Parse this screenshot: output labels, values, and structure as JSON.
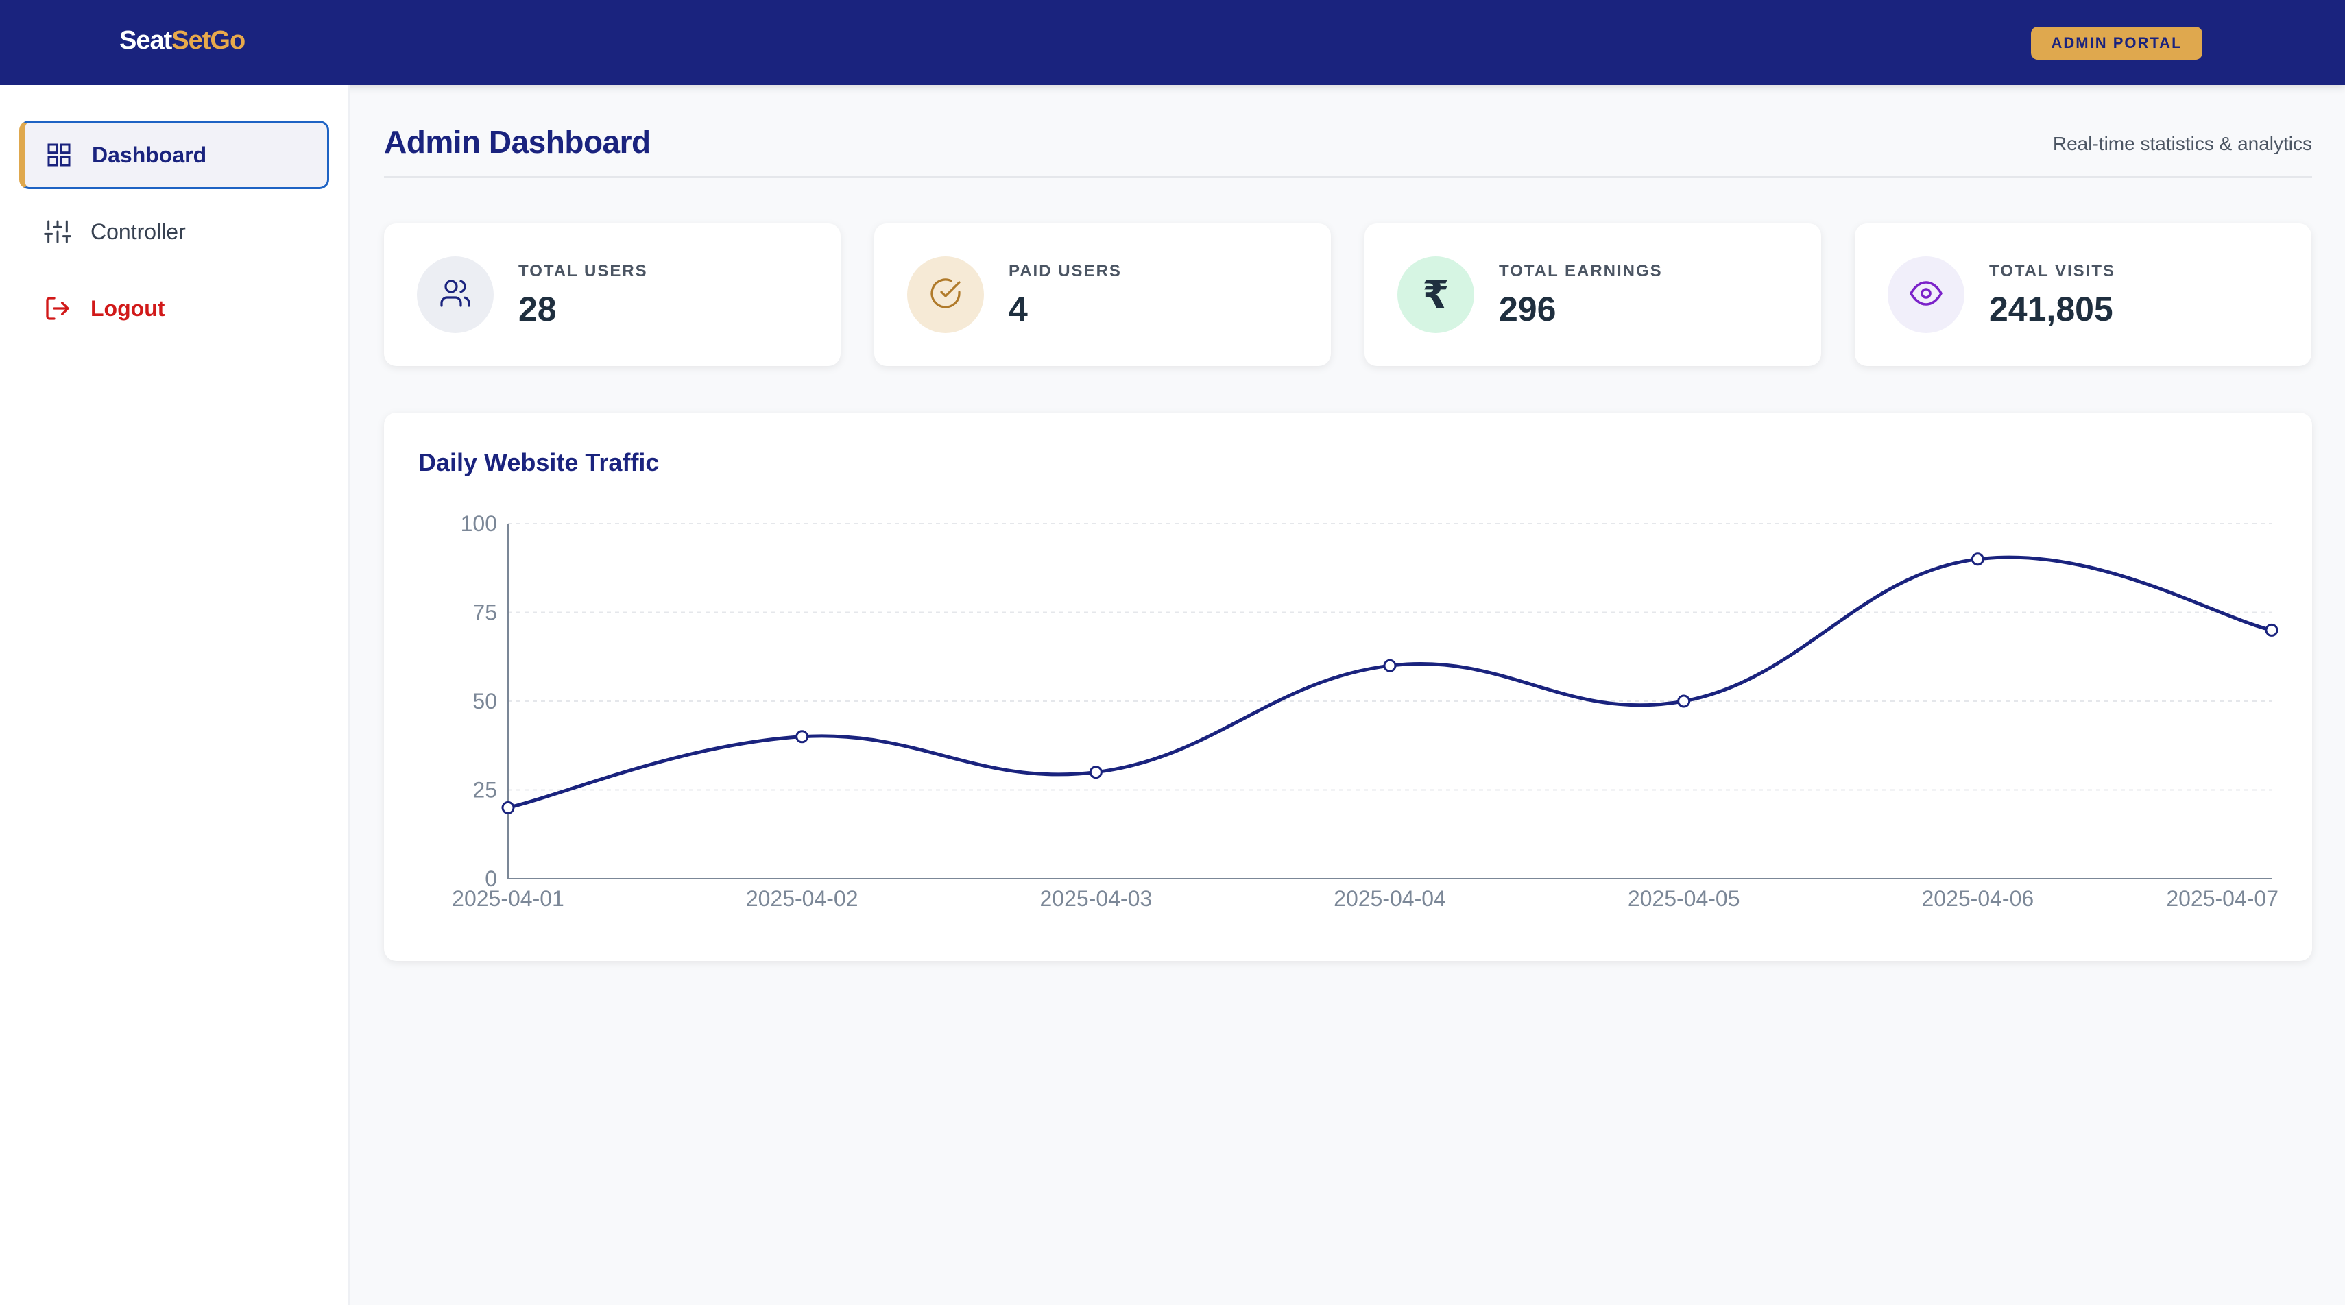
{
  "header": {
    "brand_part1": "Seat",
    "brand_part2": "SetGo",
    "badge": "ADMIN PORTAL"
  },
  "sidebar": {
    "items": [
      {
        "label": "Dashboard",
        "icon": "grid-icon",
        "active": true
      },
      {
        "label": "Controller",
        "icon": "sliders-icon",
        "active": false
      },
      {
        "label": "Logout",
        "icon": "logout-icon",
        "active": false
      }
    ]
  },
  "main": {
    "title": "Admin Dashboard",
    "subtitle": "Real-time statistics & analytics",
    "stats": [
      {
        "label": "TOTAL USERS",
        "value": "28",
        "icon": "users-icon",
        "bg": "#eceef3",
        "color": "#1a237e"
      },
      {
        "label": "PAID USERS",
        "value": "4",
        "icon": "check-circle-icon",
        "bg": "#f6ead6",
        "color": "#b07a2a"
      },
      {
        "label": "TOTAL EARNINGS",
        "value": "296",
        "icon": "rupee-icon",
        "glyph": "₹",
        "bg": "#d6f5e3",
        "color": "#1f2f3f"
      },
      {
        "label": "TOTAL VISITS",
        "value": "241,805",
        "icon": "eye-icon",
        "bg": "#f1effa",
        "color": "#7b22c9"
      }
    ]
  },
  "chart_data": {
    "type": "line",
    "title": "Daily Website Traffic",
    "xlabel": "",
    "ylabel": "",
    "categories": [
      "2025-04-01",
      "2025-04-02",
      "2025-04-03",
      "2025-04-04",
      "2025-04-05",
      "2025-04-06",
      "2025-04-07"
    ],
    "series": [
      {
        "values": [
          20,
          40,
          30,
          60,
          50,
          90,
          70
        ]
      }
    ],
    "ylim": [
      0,
      100
    ],
    "yticks": [
      0,
      25,
      50,
      75,
      100
    ],
    "grid": true,
    "line_color": "#1a237e",
    "curve": "smooth"
  }
}
